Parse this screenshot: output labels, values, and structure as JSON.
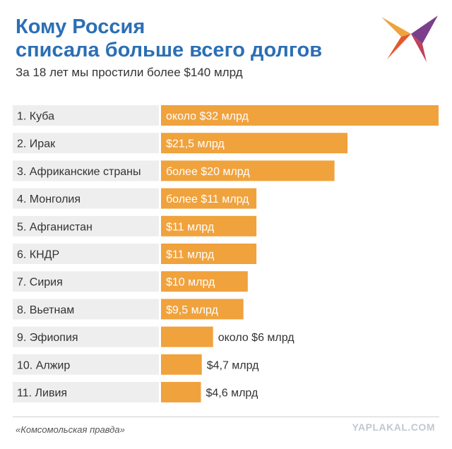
{
  "header": {
    "title_line1": "Кому Россия",
    "title_line2": "списала больше всего долгов",
    "subtitle": "За 18 лет мы простили более $140 млрд"
  },
  "logo": {
    "icon": "swallow-bird-icon"
  },
  "chart_data": {
    "type": "bar",
    "orientation": "horizontal",
    "categories": [
      "1. Куба",
      "2. Ирак",
      "3. Африканские страны",
      "4. Монголия",
      "5. Афганистан",
      "6. КНДР",
      "7. Сирия",
      "8. Вьетнам",
      "9. Эфиопия",
      "10. Алжир",
      "11. Ливия"
    ],
    "values": [
      32,
      21.5,
      20,
      11,
      11,
      11,
      10,
      9.5,
      6,
      4.7,
      4.6
    ],
    "value_labels": [
      "около $32 млрд",
      "$21,5 млрд",
      "более $20 млрд",
      "более $11 млрд",
      "$11 млрд",
      "$11 млрд",
      "$10 млрд",
      "$9,5 млрд",
      "около $6 млрд",
      "$4,7 млрд",
      "$4,6 млрд"
    ],
    "unit": "млрд $",
    "xlim": [
      0,
      32
    ],
    "colors": {
      "bar": "#f0a23d",
      "label_bg": "#eeeeee",
      "title": "#2b6fb5"
    }
  },
  "footer": {
    "source": "«Комсомольская правда»",
    "watermark": "YAPLAKAL.COM"
  }
}
